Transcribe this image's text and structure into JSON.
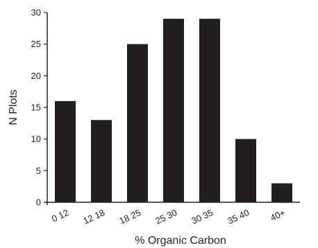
{
  "chart_data": {
    "type": "bar",
    "categories": [
      "0 12",
      "12 18",
      "18 25",
      "25 30",
      "30 35",
      "35 40",
      "40+"
    ],
    "values": [
      16,
      13,
      25,
      29,
      29,
      10,
      3
    ],
    "xlabel": "% Organic Carbon",
    "ylabel": "N Plots",
    "ylim": [
      0,
      30
    ],
    "yticks": [
      0,
      5,
      10,
      15,
      20,
      25,
      30
    ],
    "bar_color": "#231f20",
    "grid": false
  }
}
